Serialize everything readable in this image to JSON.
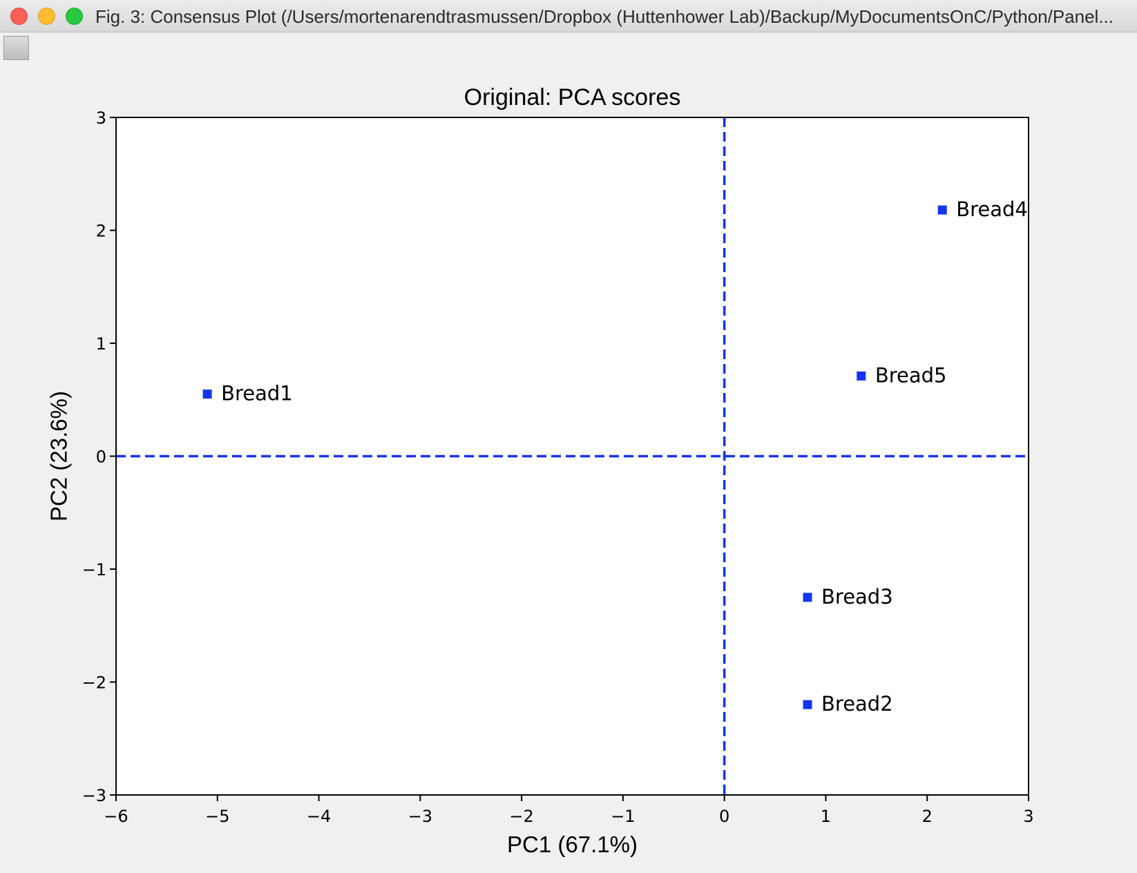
{
  "window": {
    "title": "Fig. 3: Consensus Plot (/Users/mortenarendtrasmussen/Dropbox (Huttenhower Lab)/Backup/MyDocumentsOnC/Python/Panel..."
  },
  "colors": {
    "marker": "#1533f0",
    "refline": "#1533f0",
    "axes": "#000000",
    "plot_bg": "#ffffff",
    "figure_bg": "#f0f0f0"
  },
  "chart_data": {
    "type": "scatter",
    "title": "Original: PCA scores",
    "xlabel": "PC1 (67.1%)",
    "ylabel": "PC2 (23.6%)",
    "xlim": [
      -6,
      3
    ],
    "ylim": [
      -3,
      3
    ],
    "xticks": [
      -6,
      -5,
      -4,
      -3,
      -2,
      -1,
      0,
      1,
      2,
      3
    ],
    "yticks": [
      -3,
      -2,
      -1,
      0,
      1,
      2,
      3
    ],
    "grid": false,
    "reference_lines": {
      "x": 0,
      "y": 0,
      "style": "dashed"
    },
    "points": [
      {
        "label": "Bread1",
        "x": -5.1,
        "y": 0.55
      },
      {
        "label": "Bread2",
        "x": 0.82,
        "y": -2.2
      },
      {
        "label": "Bread3",
        "x": 0.82,
        "y": -1.25
      },
      {
        "label": "Bread4",
        "x": 2.15,
        "y": 2.18
      },
      {
        "label": "Bread5",
        "x": 1.35,
        "y": 0.71
      }
    ]
  }
}
